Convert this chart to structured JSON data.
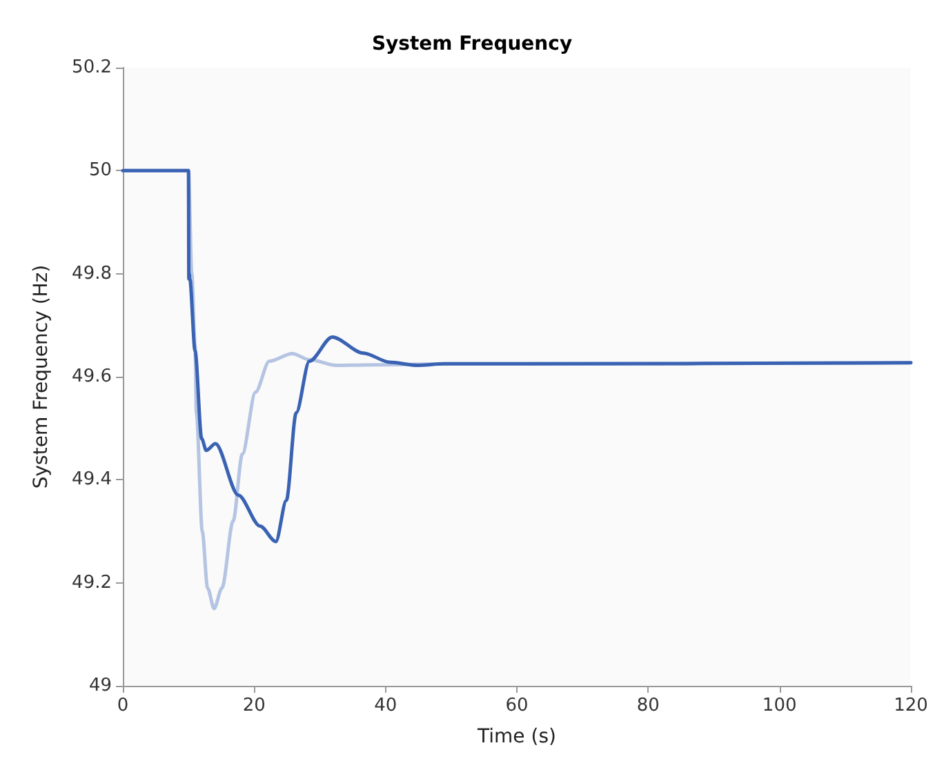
{
  "chart_data": {
    "type": "line",
    "title": "System Frequency",
    "xlabel": "Time (s)",
    "ylabel": "System Frequency (Hz)",
    "xlim": [
      0,
      120
    ],
    "xticks": [
      0,
      20,
      40,
      60,
      80,
      100,
      120
    ],
    "ylim": [
      49,
      50.2
    ],
    "yticks": [
      49,
      49.2,
      49.4,
      49.6,
      49.8,
      50,
      50.2
    ],
    "grid": false,
    "marker": "none",
    "line_style": "solid",
    "series": [
      {
        "color": "#b4c4e2",
        "x": [
          0,
          10,
          10.5,
          11,
          11.2,
          12.1,
          12.9,
          13.9,
          15.1,
          16.8,
          18.2,
          20.2,
          22.3,
          25.8,
          28.4,
          32.5,
          38.7,
          50,
          60,
          120
        ],
        "values": [
          50,
          50,
          49.8,
          49.66,
          49.53,
          49.3,
          49.19,
          49.15,
          49.19,
          49.32,
          49.45,
          49.57,
          49.63,
          49.645,
          49.633,
          49.622,
          49.623,
          49.625,
          49.625,
          49.627
        ]
      },
      {
        "color": "#3a62b3",
        "x": [
          0,
          10,
          10.05,
          10.1,
          10.2,
          11,
          12,
          12.7,
          14.1,
          17.6,
          20.9,
          23.3,
          24.9,
          26.4,
          28.4,
          31.9,
          36.6,
          40.7,
          44.8,
          48.9,
          60,
          120
        ],
        "values": [
          50,
          50,
          49.79,
          49.8,
          49.79,
          49.65,
          49.48,
          49.457,
          49.47,
          49.37,
          49.31,
          49.28,
          49.36,
          49.53,
          49.63,
          49.677,
          49.646,
          49.628,
          49.622,
          49.625,
          49.625,
          49.627
        ]
      }
    ]
  }
}
